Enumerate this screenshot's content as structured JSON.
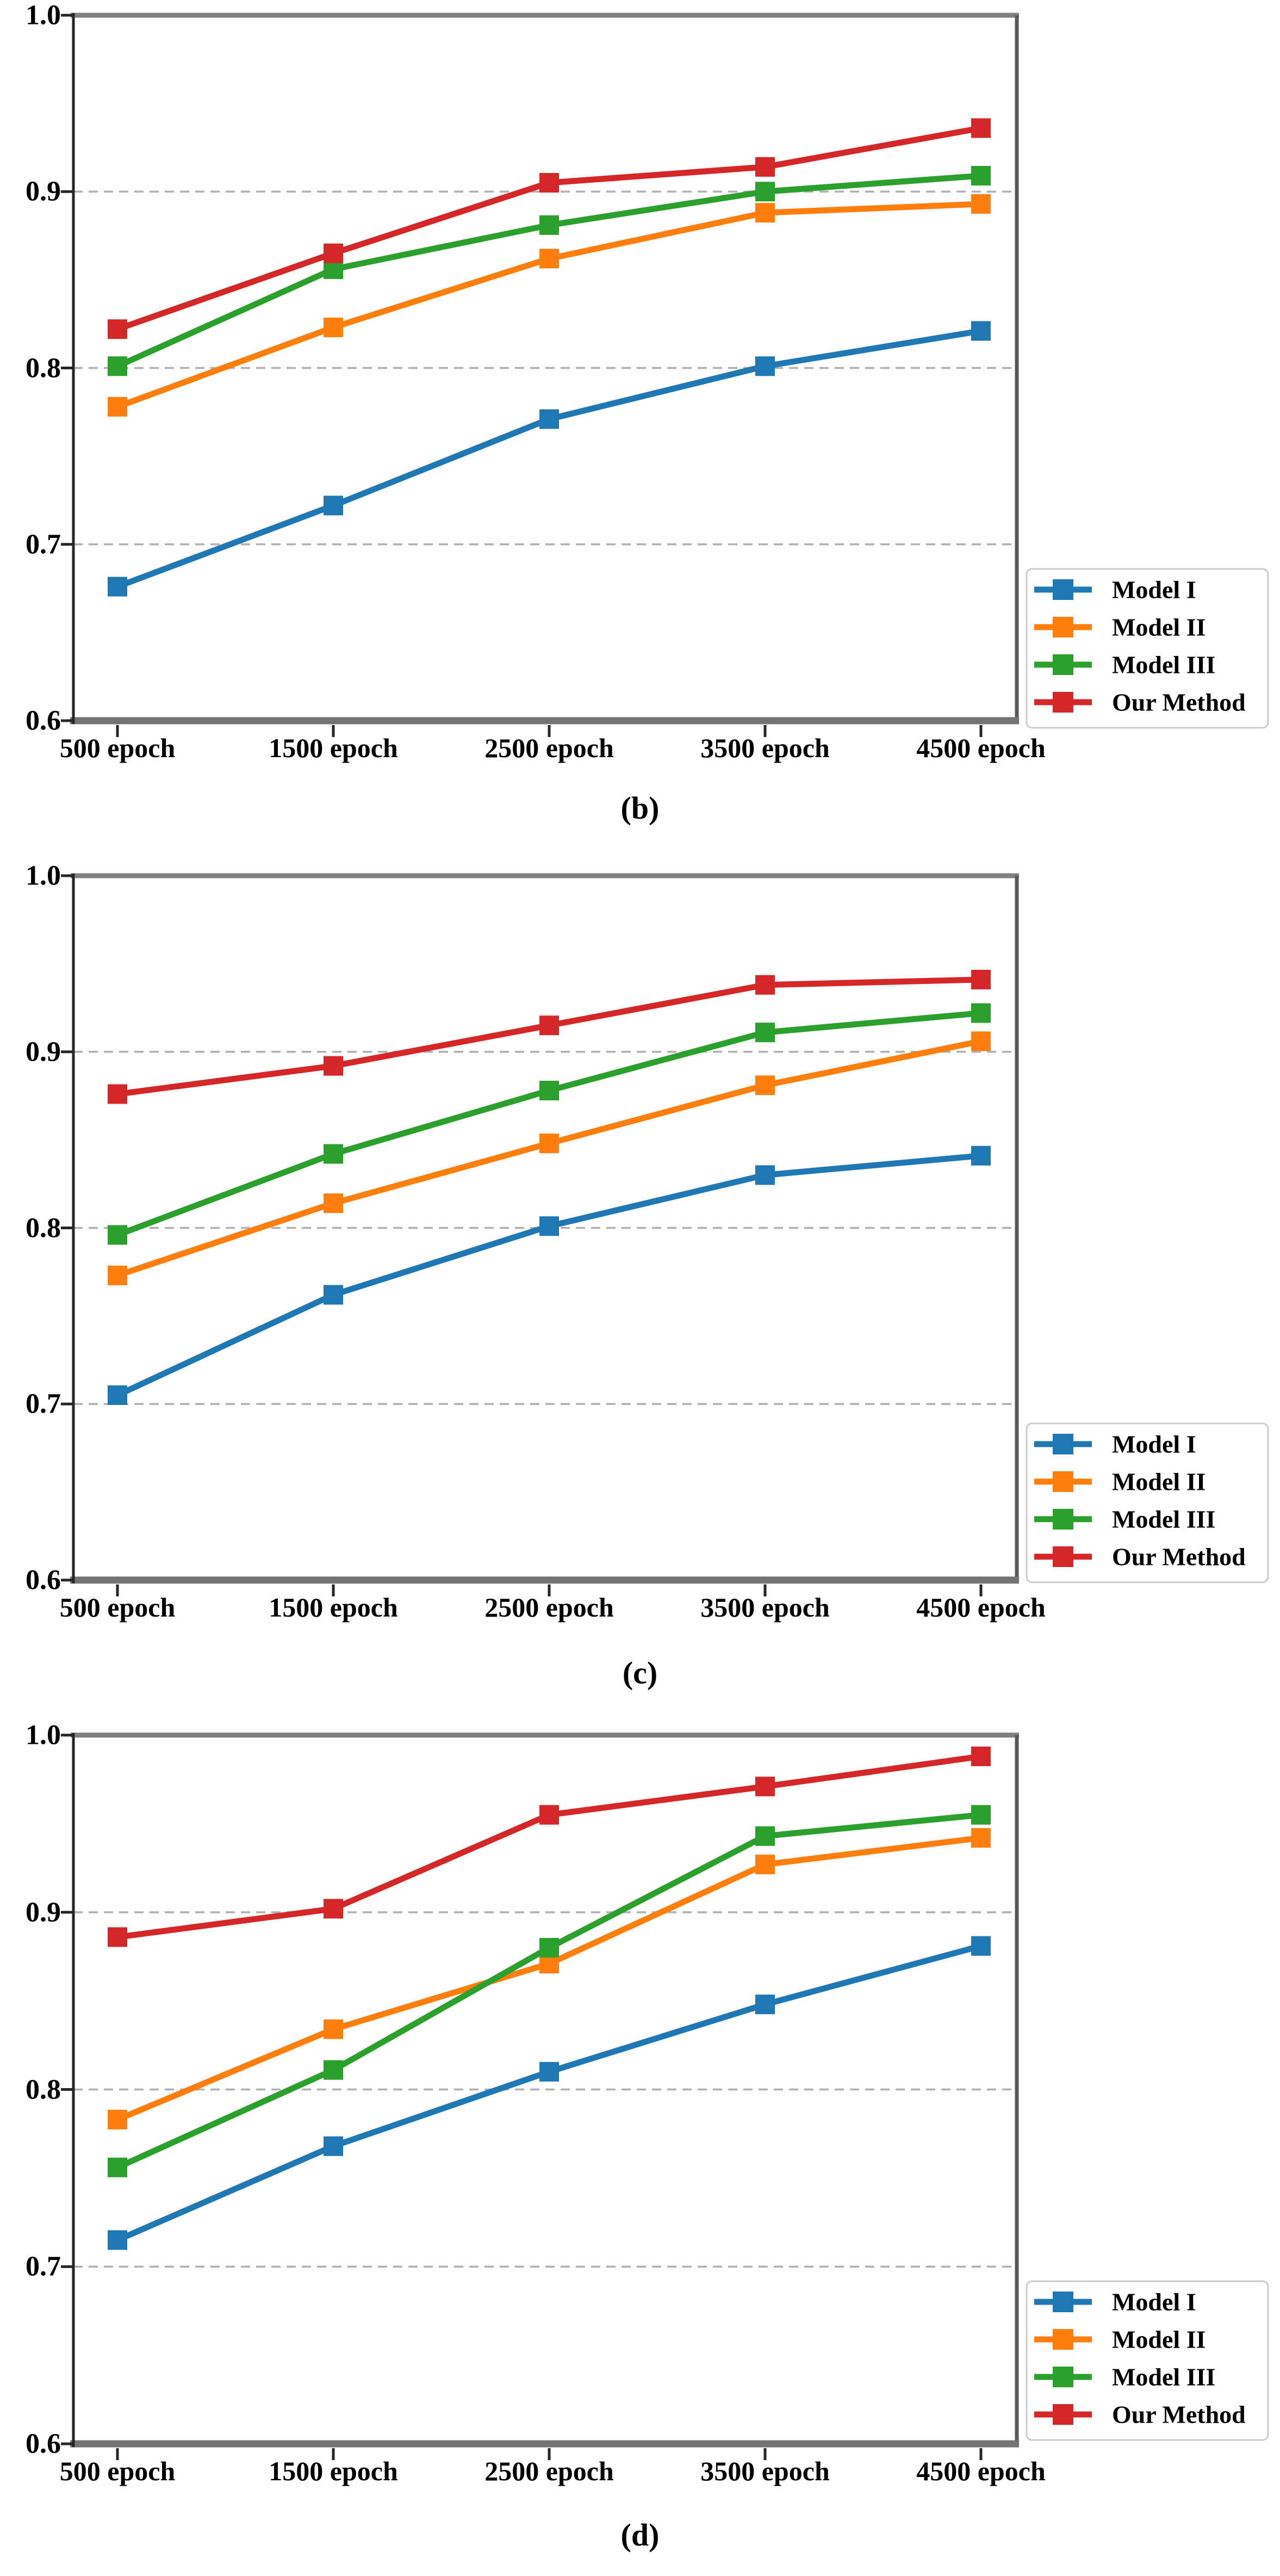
{
  "page": {
    "background": "#ffffff"
  },
  "chart_data": [
    {
      "id": "b",
      "type": "line",
      "caption": "(b)",
      "categories": [
        "500 epoch",
        "1500 epoch",
        "2500 epoch",
        "3500 epoch",
        "4500 epoch"
      ],
      "ytick_labels": [
        "1.0",
        "0.9",
        "0.8",
        "0.7",
        "0.6"
      ],
      "ylim": [
        0.6,
        1.0
      ],
      "gridlines_at": [
        0.9,
        0.8,
        0.7
      ],
      "grid_style": "dashed-horizontal",
      "legend_position": "lower-right-outside",
      "series": [
        {
          "name": "Model I",
          "color": "#1f77b4",
          "marker": "square",
          "values": [
            0.676,
            0.722,
            0.771,
            0.801,
            0.821
          ]
        },
        {
          "name": "Model II",
          "color": "#ff7f0e",
          "marker": "square",
          "values": [
            0.778,
            0.823,
            0.862,
            0.888,
            0.893
          ]
        },
        {
          "name": "Model III",
          "color": "#2ca02c",
          "marker": "square",
          "values": [
            0.801,
            0.856,
            0.881,
            0.9,
            0.909
          ]
        },
        {
          "name": "Our Method",
          "color": "#d62728",
          "marker": "square",
          "values": [
            0.822,
            0.865,
            0.905,
            0.914,
            0.936
          ]
        }
      ]
    },
    {
      "id": "c",
      "type": "line",
      "caption": "(c)",
      "categories": [
        "500 epoch",
        "1500 epoch",
        "2500 epoch",
        "3500 epoch",
        "4500 epoch"
      ],
      "ytick_labels": [
        "1.0",
        "0.9",
        "0.8",
        "0.7",
        "0.6"
      ],
      "ylim": [
        0.6,
        1.0
      ],
      "gridlines_at": [
        0.9,
        0.8,
        0.7
      ],
      "grid_style": "dashed-horizontal",
      "legend_position": "lower-right-outside",
      "series": [
        {
          "name": "Model I",
          "color": "#1f77b4",
          "marker": "square",
          "values": [
            0.705,
            0.762,
            0.801,
            0.83,
            0.841
          ]
        },
        {
          "name": "Model II",
          "color": "#ff7f0e",
          "marker": "square",
          "values": [
            0.773,
            0.814,
            0.848,
            0.881,
            0.906
          ]
        },
        {
          "name": "Model III",
          "color": "#2ca02c",
          "marker": "square",
          "values": [
            0.796,
            0.842,
            0.878,
            0.911,
            0.922
          ]
        },
        {
          "name": "Our Method",
          "color": "#d62728",
          "marker": "square",
          "values": [
            0.876,
            0.892,
            0.915,
            0.938,
            0.941
          ]
        }
      ]
    },
    {
      "id": "d",
      "type": "line",
      "caption": "(d)",
      "categories": [
        "500 epoch",
        "1500 epoch",
        "2500 epoch",
        "3500 epoch",
        "4500 epoch"
      ],
      "ytick_labels": [
        "1.0",
        "0.9",
        "0.8",
        "0.7",
        "0.6"
      ],
      "ylim": [
        0.6,
        1.0
      ],
      "gridlines_at": [
        0.9,
        0.8,
        0.7
      ],
      "grid_style": "dashed-horizontal",
      "legend_position": "lower-right-inside",
      "series": [
        {
          "name": "Model I",
          "color": "#1f77b4",
          "marker": "square",
          "values": [
            0.715,
            0.768,
            0.81,
            0.848,
            0.881
          ]
        },
        {
          "name": "Model II",
          "color": "#ff7f0e",
          "marker": "square",
          "values": [
            0.783,
            0.834,
            0.871,
            0.927,
            0.942
          ]
        },
        {
          "name": "Model III",
          "color": "#2ca02c",
          "marker": "square",
          "values": [
            0.756,
            0.811,
            0.88,
            0.943,
            0.955
          ]
        },
        {
          "name": "Our Method",
          "color": "#d62728",
          "marker": "square",
          "values": [
            0.886,
            0.902,
            0.955,
            0.971,
            0.988
          ]
        }
      ]
    }
  ]
}
